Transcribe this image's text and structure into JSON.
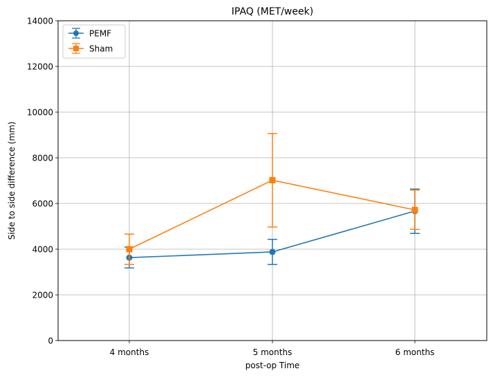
{
  "chart_data": {
    "type": "line",
    "title": "IPAQ (MET/week)",
    "xlabel": "post-op Time",
    "ylabel": "Side to side difference (mm)",
    "categories": [
      "4 months",
      "5 months",
      "6 months"
    ],
    "ylim": [
      0,
      14000
    ],
    "yticks": [
      "0",
      "2000",
      "4000",
      "6000",
      "8000",
      "10000",
      "12000",
      "14000"
    ],
    "grid": true,
    "legend_position": "top-left",
    "series": [
      {
        "name": "PEMF",
        "color": "#1f77b4",
        "marker": "circle",
        "values": [
          3630,
          3880,
          5670
        ],
        "error_low": [
          3180,
          3330,
          4690
        ],
        "error_high": [
          4090,
          4430,
          6630
        ]
      },
      {
        "name": "Sham",
        "color": "#ff7f0e",
        "marker": "square",
        "values": [
          4000,
          7020,
          5720
        ],
        "error_low": [
          3330,
          4970,
          4870
        ],
        "error_high": [
          4660,
          9060,
          6590
        ]
      }
    ]
  }
}
